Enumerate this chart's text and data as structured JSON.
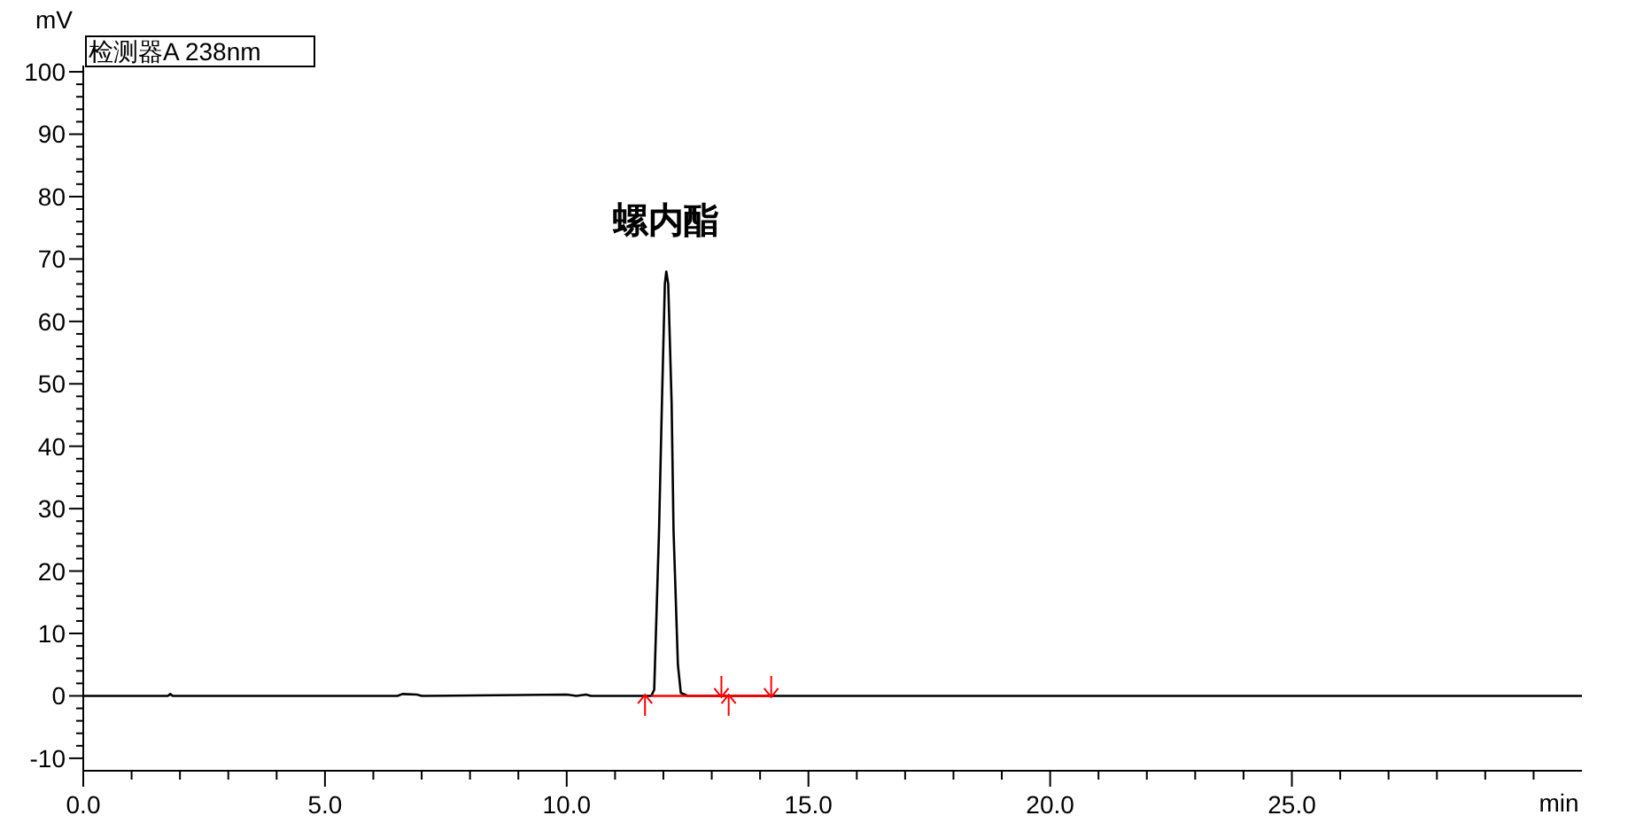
{
  "chart_data": {
    "type": "line",
    "ylabel": "mV",
    "xlabel": "min",
    "annotations": [
      {
        "text": "螺内酯",
        "x": 12.06,
        "y": 68
      }
    ],
    "legend": "top left",
    "line_style": "solid",
    "grid": false,
    "xlim": [
      0,
      31
    ],
    "ylim": [
      -12,
      101
    ],
    "xticks": [
      {
        "value": 0,
        "label": "0.0"
      },
      {
        "value": 1,
        "label": null
      },
      {
        "value": 2,
        "label": null
      },
      {
        "value": 3,
        "label": null
      },
      {
        "value": 4,
        "label": null
      },
      {
        "value": 5,
        "label": "5.0"
      },
      {
        "value": 6,
        "label": null
      },
      {
        "value": 7,
        "label": null
      },
      {
        "value": 8,
        "label": null
      },
      {
        "value": 9,
        "label": null
      },
      {
        "value": 10,
        "label": "10.0"
      },
      {
        "value": 11,
        "label": null
      },
      {
        "value": 12,
        "label": null
      },
      {
        "value": 13,
        "label": null
      },
      {
        "value": 14,
        "label": null
      },
      {
        "value": 15,
        "label": "15.0"
      },
      {
        "value": 16,
        "label": null
      },
      {
        "value": 17,
        "label": null
      },
      {
        "value": 18,
        "label": null
      },
      {
        "value": 19,
        "label": null
      },
      {
        "value": 20,
        "label": "20.0"
      },
      {
        "value": 21,
        "label": null
      },
      {
        "value": 22,
        "label": null
      },
      {
        "value": 23,
        "label": null
      },
      {
        "value": 24,
        "label": null
      },
      {
        "value": 25,
        "label": "25.0"
      },
      {
        "value": 26,
        "label": null
      },
      {
        "value": 27,
        "label": null
      },
      {
        "value": 28,
        "label": null
      },
      {
        "value": 29,
        "label": null
      },
      {
        "value": 30,
        "label": null
      }
    ],
    "yticks": [
      -10,
      {
        "value": -8,
        "label": null
      },
      {
        "value": -6,
        "label": null
      },
      {
        "value": -4,
        "label": null
      },
      {
        "value": -2,
        "label": null
      },
      0,
      {
        "value": 2,
        "label": null
      },
      {
        "value": 4,
        "label": null
      },
      {
        "value": 6,
        "label": null
      },
      {
        "value": 8,
        "label": null
      },
      10,
      {
        "value": 12,
        "label": null
      },
      {
        "value": 14,
        "label": null
      },
      {
        "value": 16,
        "label": null
      },
      {
        "value": 18,
        "label": null
      },
      20,
      {
        "value": 22,
        "label": null
      },
      {
        "value": 24,
        "label": null
      },
      {
        "value": 26,
        "label": null
      },
      {
        "value": 28,
        "label": null
      },
      30,
      {
        "value": 32,
        "label": null
      },
      {
        "value": 34,
        "label": null
      },
      {
        "value": 36,
        "label": null
      },
      {
        "value": 38,
        "label": null
      },
      40,
      {
        "value": 42,
        "label": null
      },
      {
        "value": 44,
        "label": null
      },
      {
        "value": 46,
        "label": null
      },
      {
        "value": 48,
        "label": null
      },
      50,
      {
        "value": 52,
        "label": null
      },
      {
        "value": 54,
        "label": null
      },
      {
        "value": 56,
        "label": null
      },
      {
        "value": 58,
        "label": null
      },
      60,
      {
        "value": 62,
        "label": null
      },
      {
        "value": 64,
        "label": null
      },
      {
        "value": 66,
        "label": null
      },
      {
        "value": 68,
        "label": null
      },
      70,
      {
        "value": 72,
        "label": null
      },
      {
        "value": 74,
        "label": null
      },
      {
        "value": 76,
        "label": null
      },
      {
        "value": 78,
        "label": null
      },
      80,
      {
        "value": 82,
        "label": null
      },
      {
        "value": 84,
        "label": null
      },
      {
        "value": 86,
        "label": null
      },
      {
        "value": 88,
        "label": null
      },
      90,
      {
        "value": 92,
        "label": null
      },
      {
        "value": 94,
        "label": null
      },
      {
        "value": 96,
        "label": null
      },
      {
        "value": 98,
        "label": null
      },
      100
    ],
    "series": [
      {
        "name": "检测器A 238nm",
        "color": "#000000",
        "marker": "none",
        "x": [
          0,
          1.75,
          1.8,
          1.85,
          6.5,
          6.6,
          6.9,
          7.0,
          10.0,
          10.2,
          10.4,
          10.5,
          11.75,
          11.81,
          11.91,
          11.97,
          12.03,
          12.06,
          12.1,
          12.17,
          12.21,
          12.3,
          12.36,
          12.5,
          31
        ],
        "values": [
          0,
          0,
          0.3,
          0,
          0,
          0.3,
          0.2,
          0,
          0.2,
          0,
          0.2,
          0,
          0,
          1,
          26.5,
          47,
          66,
          68,
          66,
          47,
          26.5,
          5,
          0.5,
          0,
          0
        ]
      },
      {
        "type": "line",
        "color": "#ff0000",
        "marker": "none",
        "x": [
          11.75,
          14.23
        ],
        "values": [
          0,
          0
        ]
      },
      {
        "type": "scatter",
        "color": "#ff0000",
        "x": [
          11.62,
          13.2,
          13.35,
          14.23
        ],
        "values": [
          -1.5,
          1.5,
          -1.5,
          1.5
        ]
      }
    ]
  }
}
